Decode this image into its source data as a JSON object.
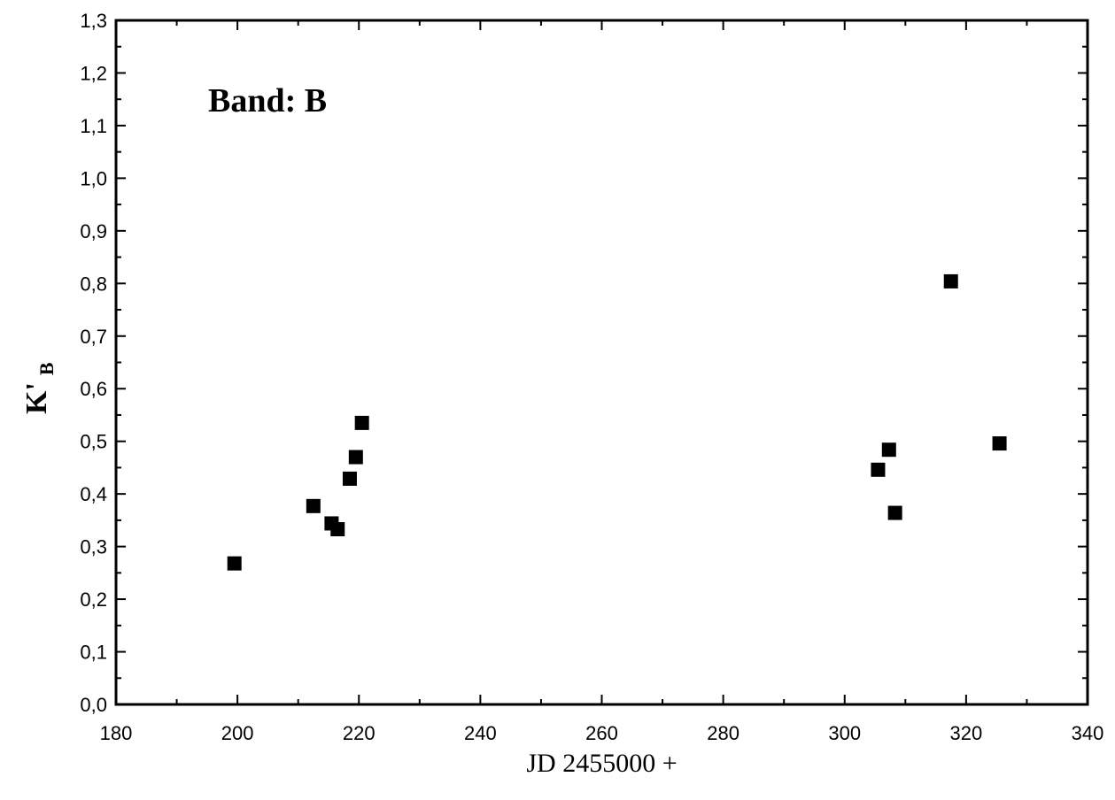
{
  "chart_data": {
    "type": "scatter",
    "title": "",
    "xlabel": "JD 2455000 +",
    "ylabel": "K'",
    "ylabel_subscript": "B",
    "annotation": "Band: B",
    "xlim": [
      180,
      340
    ],
    "ylim": [
      0.0,
      1.3
    ],
    "x_ticks": [
      180,
      200,
      220,
      240,
      260,
      280,
      300,
      320,
      340
    ],
    "y_ticks": [
      "0,0",
      "0,1",
      "0,2",
      "0,3",
      "0,4",
      "0,5",
      "0,6",
      "0,7",
      "0,8",
      "0,9",
      "1,0",
      "1,1",
      "1,2",
      "1,3"
    ],
    "grid": false,
    "marker": "filled-square",
    "marker_color": "#000000",
    "series": [
      {
        "x": [
          199.5,
          212.5,
          215.5,
          216.5,
          218.5,
          219.5,
          220.5,
          305.5,
          307.3,
          308.3,
          317.5,
          325.5
        ],
        "y": [
          0.268,
          0.377,
          0.344,
          0.333,
          0.429,
          0.47,
          0.535,
          0.446,
          0.484,
          0.364,
          0.804,
          0.496
        ]
      }
    ]
  }
}
